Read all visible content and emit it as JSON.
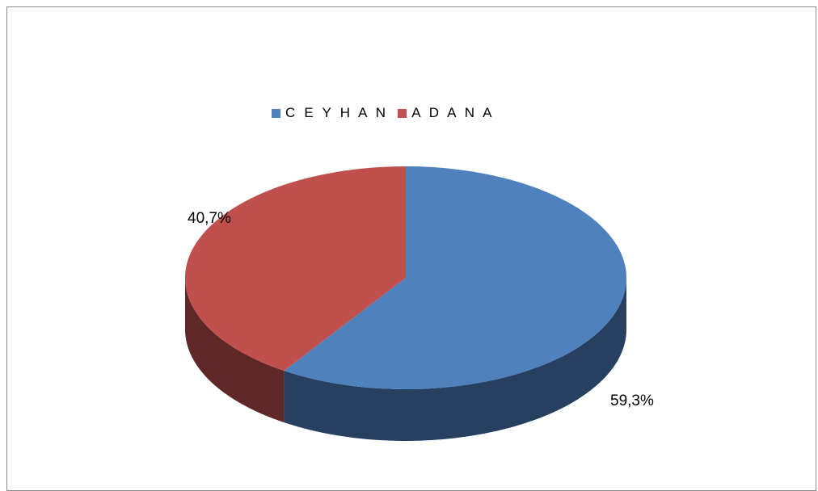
{
  "chart_data": {
    "type": "pie",
    "title": "",
    "style": "3d",
    "legend_position": "top",
    "categories": [
      "C E Y H A N",
      "A D A N A"
    ],
    "values": [
      59.3,
      40.7
    ],
    "data_labels": [
      "59,3%",
      "40,7%"
    ],
    "colors": {
      "top": [
        "#4f81bd",
        "#c0504d"
      ],
      "side": [
        "#27405f",
        "#5f2726"
      ]
    }
  }
}
